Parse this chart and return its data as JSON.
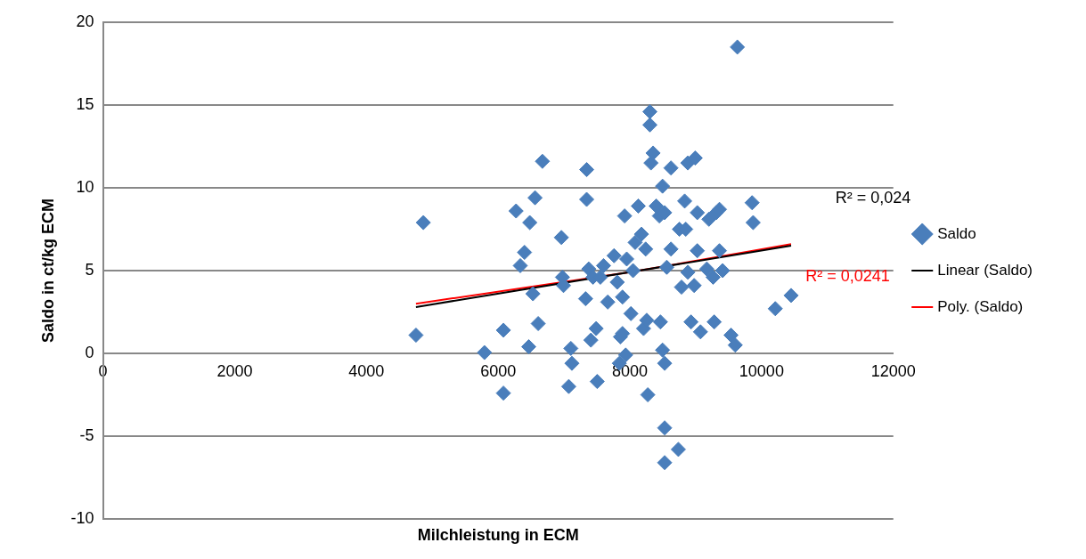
{
  "chart_data": {
    "type": "scatter",
    "xlabel": "Milchleistung in ECM",
    "ylabel": "Saldo in ct/kg ECM",
    "xlim": [
      0,
      12000
    ],
    "xticks": [
      0,
      2000,
      4000,
      6000,
      8000,
      10000,
      12000
    ],
    "ylim": [
      -10,
      20
    ],
    "yticks": [
      -10,
      -5,
      0,
      5,
      10,
      15,
      20
    ],
    "grid": "y",
    "legend": "right",
    "marker": "diamond",
    "annotations": [
      "R² = 0,024",
      "R² = 0,0241"
    ],
    "series": [
      {
        "name": "Saldo",
        "color": "#4a7ebb",
        "x": [
          4752,
          4864,
          5792,
          6080,
          6080,
          6272,
          6336,
          6400,
          6464,
          6480,
          6528,
          6560,
          6608,
          6672,
          6960,
          6976,
          6992,
          7072,
          7104,
          7120,
          7328,
          7344,
          7344,
          7376,
          7408,
          7440,
          7488,
          7504,
          7552,
          7600,
          7664,
          7760,
          7808,
          7840,
          7856,
          7888,
          7888,
          7920,
          7936,
          7952,
          8016,
          8048,
          8080,
          8128,
          8176,
          8208,
          8240,
          8272,
          8304,
          8304,
          8256,
          8320,
          8352,
          8400,
          8448,
          8464,
          8496,
          8496,
          8528,
          8528,
          8528,
          8528,
          8560,
          8624,
          8624,
          8736,
          8752,
          8784,
          8832,
          8848,
          8880,
          8880,
          8928,
          8976,
          8992,
          9024,
          9024,
          9072,
          9168,
          9200,
          9264,
          9280,
          9312,
          9360,
          9360,
          9408,
          9536,
          9600,
          9632,
          9856,
          9872,
          10208,
          10448
        ],
        "values": [
          1.1,
          7.9,
          0.05,
          1.4,
          -2.4,
          8.6,
          5.3,
          6.1,
          0.4,
          7.9,
          3.6,
          9.4,
          1.8,
          11.6,
          7.0,
          4.6,
          4.1,
          -2.0,
          0.3,
          -0.6,
          3.3,
          11.1,
          9.3,
          5.1,
          0.8,
          4.6,
          1.5,
          -1.7,
          4.6,
          5.3,
          3.1,
          5.9,
          4.3,
          -0.6,
          1.0,
          1.2,
          3.4,
          8.3,
          -0.1,
          5.7,
          2.4,
          5.0,
          6.7,
          8.9,
          7.2,
          1.5,
          6.3,
          -2.5,
          14.6,
          13.8,
          2.0,
          11.5,
          12.1,
          8.9,
          8.3,
          1.9,
          10.1,
          0.2,
          8.5,
          -0.6,
          -4.5,
          -6.6,
          5.2,
          6.3,
          11.2,
          -5.8,
          7.5,
          4.0,
          9.2,
          7.5,
          4.9,
          11.5,
          1.9,
          4.1,
          11.8,
          8.5,
          6.2,
          1.3,
          5.1,
          8.1,
          4.6,
          1.9,
          8.5,
          8.7,
          6.2,
          5.0,
          1.1,
          0.5,
          18.5,
          9.1,
          7.9,
          2.7,
          3.5
        ]
      },
      {
        "name": "Linear (Saldo)",
        "type": "line",
        "color": "#000000",
        "marker": "none",
        "x": [
          4752,
          10448
        ],
        "values": [
          2.8,
          6.5
        ]
      },
      {
        "name": "Poly. (Saldo)",
        "type": "line",
        "color": "#ff0000",
        "marker": "none",
        "x": [
          4752,
          8000,
          10448
        ],
        "values": [
          3.0,
          4.9,
          6.6
        ]
      }
    ]
  }
}
